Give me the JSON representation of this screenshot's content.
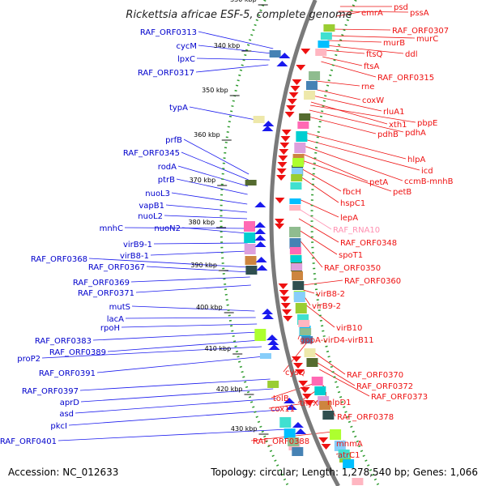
{
  "title": "Rickettsia africae ESF-5, complete genome",
  "accession": "Accession: NC_012633",
  "summary": "Topology: circular; Length: 1,278,540 bp; Genes: 1,066",
  "colors": {
    "backbone": "#7a7a7a",
    "left_labels": "#0000cc",
    "right_labels": "#dd0000",
    "rna_label": "#ff8fb0",
    "tick_dots": "#2e9b2e",
    "forward_arrows": "#1a1aee",
    "reverse_arrows": "#ee1111"
  },
  "ticks": [
    "330 kbp",
    "340 kbp",
    "350 kbp",
    "360 kbp",
    "370 kbp",
    "380 kbp",
    "390 kbp",
    "400 kbp",
    "410 kbp",
    "420 kbp",
    "430 kbp"
  ],
  "left_labels": [
    "RAF_ORF0313",
    "cycM",
    "lpxC",
    "RAF_ORF0317",
    "typA",
    "prfB",
    "RAF_ORF0345",
    "rodA",
    "ptrB",
    "nuoL3",
    "vapB1",
    "nuoL2",
    "mnhC",
    "nuoN2",
    "virB9-1",
    "virB8-1",
    "RAF_ORF0368",
    "RAF_ORF0367",
    "RAF_ORF0369",
    "RAF_ORF0371",
    "mutS",
    "lacA",
    "rpoH",
    "RAF_ORF0383",
    "RAF_ORF0389",
    "proP2",
    "RAF_ORF0391",
    "RAF_ORF0397",
    "aprD",
    "asd",
    "pkcI",
    "RAF_ORF0401"
  ],
  "right_labels": [
    "psd",
    "pssA",
    "emrA",
    "RAF_ORF0307",
    "murC",
    "murB",
    "ddl",
    "ftsQ",
    "ftsA",
    "RAF_ORF0315",
    "rne",
    "coxW",
    "rluA1",
    "xth1",
    "pbpE",
    "pdhA",
    "pdhB",
    "hlpA",
    "icd",
    "ccmB-mnhB",
    "petA",
    "petB",
    "fbcH",
    "hspC1",
    "lepA",
    "RAF_RNA10",
    "RAF_ORF0348",
    "spoT1",
    "RAF_ORF0350",
    "RAF_ORF0360",
    "virB8-2",
    "virB9-2",
    "virB10",
    "gppA-virD4-virB11",
    "cysQ",
    "RAF_ORF0370",
    "RAF_ORF0372",
    "RAF_ORF0373",
    "tolB",
    "thyX",
    "nlpD1",
    "cox11",
    "RAF_ORF0378",
    "RAF_ORF0388",
    "mnmA",
    "atrC1"
  ]
}
